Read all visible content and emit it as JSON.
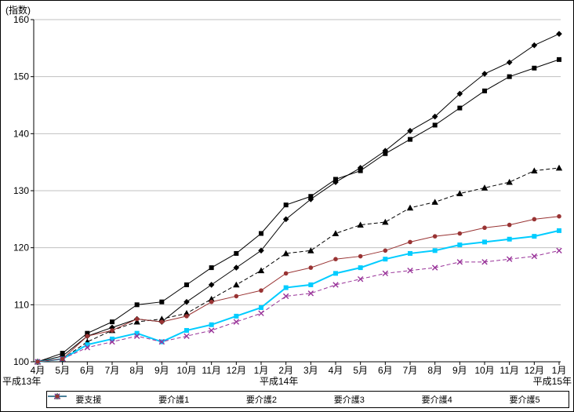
{
  "chart_data": {
    "type": "line",
    "title": "",
    "ylabel": "(指数)",
    "xlabel": "",
    "ylim": [
      100,
      160
    ],
    "ytick_interval": 10,
    "grid": true,
    "legend_position": "bottom",
    "x_labels": [
      "4月",
      "5月",
      "6月",
      "7月",
      "8月",
      "9月",
      "10月",
      "11月",
      "12月",
      "1月",
      "2月",
      "3月",
      "4月",
      "5月",
      "6月",
      "7月",
      "8月",
      "9月",
      "10月",
      "11月",
      "12月",
      "1月"
    ],
    "era_labels": [
      {
        "text": "平成13年",
        "x_index": 0,
        "align": "edge-left"
      },
      {
        "text": "平成14年",
        "x_index": 9,
        "align": "start"
      },
      {
        "text": "平成15年",
        "x_index": 21,
        "align": "edge-right"
      }
    ],
    "series": [
      {
        "name": "要支援",
        "color": "#000000",
        "marker": "diamond",
        "dash": "solid",
        "width": 1,
        "values": [
          100,
          101,
          104.5,
          106,
          107.5,
          107,
          110.5,
          113.5,
          116.5,
          119.5,
          125,
          128.5,
          131.5,
          134,
          137,
          140.5,
          143,
          147,
          150.5,
          152.5,
          155.5,
          157.5
        ]
      },
      {
        "name": "要介護1",
        "color": "#000000",
        "marker": "square",
        "dash": "solid",
        "width": 1,
        "values": [
          100,
          101.5,
          105,
          107,
          110,
          110.5,
          113.5,
          116.5,
          119,
          122.5,
          127.5,
          129,
          132,
          133.5,
          136.5,
          139,
          141.5,
          144.5,
          147.5,
          150,
          151.5,
          153
        ]
      },
      {
        "name": "要介護2",
        "color": "#000000",
        "marker": "triangle",
        "dash": "dashed",
        "width": 1,
        "values": [
          100,
          100.5,
          103.5,
          105.5,
          107,
          107.5,
          108.5,
          111,
          113.5,
          116,
          119,
          119.5,
          122.5,
          124,
          124.5,
          127,
          128,
          129.5,
          130.5,
          131.5,
          133.5,
          134
        ]
      },
      {
        "name": "要介護3",
        "color": "#00ccff",
        "marker": "square",
        "dash": "solid",
        "width": 2,
        "values": [
          100,
          100.5,
          103,
          104,
          105,
          103.5,
          105.5,
          106.5,
          108,
          109.5,
          113,
          113.5,
          115.5,
          116.5,
          118,
          119,
          119.5,
          120.5,
          121,
          121.5,
          122,
          123
        ]
      },
      {
        "name": "要介護4",
        "color": "#993399",
        "marker": "x",
        "dash": "dashed",
        "width": 1,
        "values": [
          100,
          100.5,
          102.5,
          103.5,
          104.5,
          103.5,
          104.5,
          105.5,
          107,
          108.5,
          111.5,
          112,
          113.5,
          114.5,
          115.5,
          116,
          116.5,
          117.5,
          117.5,
          118,
          118.5,
          119.5
        ]
      },
      {
        "name": "要介護5",
        "color": "#993333",
        "marker": "circle",
        "dash": "solid",
        "width": 1,
        "values": [
          100,
          100.5,
          104.5,
          105.5,
          107.5,
          107,
          108,
          110.5,
          111.5,
          112.5,
          115.5,
          116.5,
          118,
          118.5,
          119.5,
          121,
          122,
          122.5,
          123.5,
          124,
          125,
          125.5
        ]
      }
    ]
  }
}
